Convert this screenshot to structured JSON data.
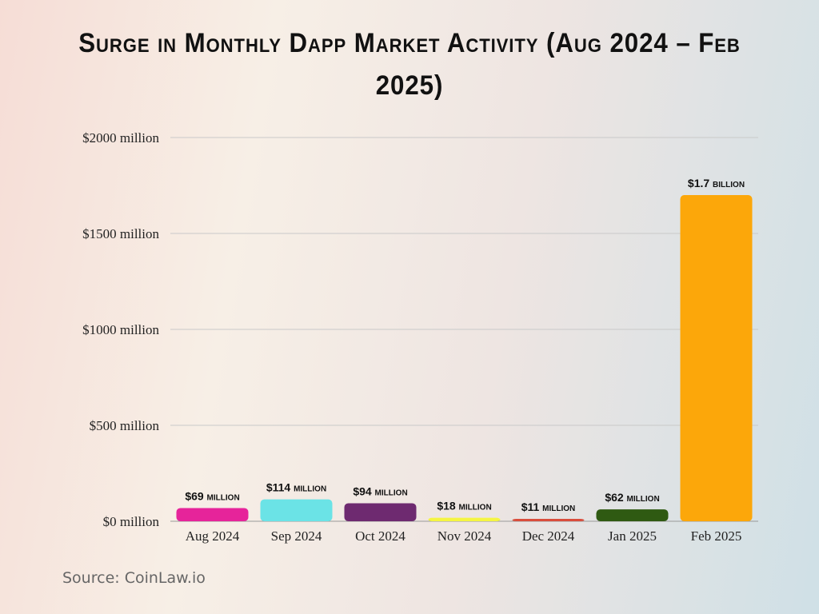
{
  "chart_data": {
    "type": "bar",
    "title": "Surge in Monthly Dapp Market Activity (Aug 2024 – Feb 2025)",
    "categories": [
      "Aug 2024",
      "Sep 2024",
      "Oct 2024",
      "Nov 2024",
      "Dec 2024",
      "Jan 2025",
      "Feb 2025"
    ],
    "values": [
      69,
      114,
      94,
      18,
      11,
      62,
      1700
    ],
    "data_labels": [
      "$69 million",
      "$114 million",
      "$94 million",
      "$18 million",
      "$11 million",
      "$62 million",
      "$1.7 billion"
    ],
    "colors": [
      "#e6249a",
      "#6be3e6",
      "#6e2a70",
      "#f5f542",
      "#d94d3c",
      "#2f5a12",
      "#fca70a"
    ],
    "unit": "million USD",
    "ylim": [
      0,
      2000
    ],
    "yticks": [
      0,
      500,
      1000,
      1500,
      2000
    ],
    "ytick_labels": [
      "$0 million",
      "$500 million",
      "$1000 million",
      "$1500 million",
      "$2000 million"
    ],
    "xlabel": "",
    "ylabel": "",
    "grid": true,
    "legend": "none"
  },
  "source": "Source: CoinLaw.io"
}
